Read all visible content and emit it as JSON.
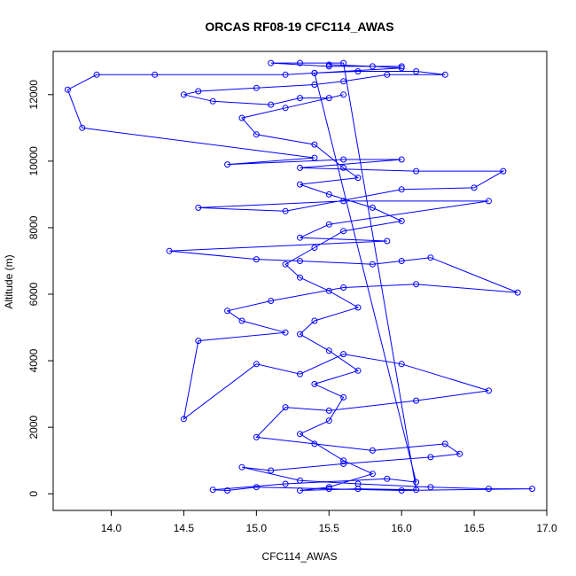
{
  "chart_data": {
    "type": "line",
    "title": "ORCAS RF08-19 CFC114_AWAS",
    "xlabel": "CFC114_AWAS",
    "ylabel": "Altitude (m)",
    "xlim": [
      13.6,
      17.0
    ],
    "ylim": [
      -500,
      13300
    ],
    "xticks": [
      14.0,
      14.5,
      15.0,
      15.5,
      16.0,
      16.5,
      17.0
    ],
    "xtick_labels": [
      "14.0",
      "14.5",
      "15.0",
      "15.5",
      "16.0",
      "16.5",
      "17.0"
    ],
    "yticks": [
      0,
      2000,
      4000,
      6000,
      8000,
      10000,
      12000
    ],
    "ytick_labels": [
      "0",
      "2000",
      "4000",
      "6000",
      "8000",
      "10000",
      "12000"
    ],
    "colors": {
      "series": "#0000ff",
      "axis": "#000000"
    },
    "grid": false,
    "legend": "none",
    "series": [
      {
        "marker": "open-circle",
        "points": [
          [
            15.5,
            12900
          ],
          [
            15.8,
            12850
          ],
          [
            16.0,
            12800
          ],
          [
            15.4,
            12650
          ],
          [
            15.2,
            12600
          ],
          [
            14.3,
            12600
          ],
          [
            13.9,
            12600
          ],
          [
            13.7,
            12150
          ],
          [
            13.8,
            11000
          ],
          [
            15.4,
            10100
          ],
          [
            14.8,
            9900
          ],
          [
            15.6,
            10050
          ],
          [
            16.0,
            10050
          ],
          [
            15.3,
            9800
          ],
          [
            16.1,
            9700
          ],
          [
            16.7,
            9700
          ],
          [
            16.5,
            9200
          ],
          [
            16.0,
            9150
          ],
          [
            15.2,
            8500
          ],
          [
            14.6,
            8600
          ],
          [
            15.6,
            8800
          ],
          [
            16.6,
            8800
          ],
          [
            15.5,
            8100
          ],
          [
            15.3,
            7700
          ],
          [
            15.9,
            7600
          ],
          [
            14.4,
            7300
          ],
          [
            15.0,
            7050
          ],
          [
            15.3,
            7000
          ],
          [
            15.8,
            6900
          ],
          [
            16.0,
            7000
          ],
          [
            16.2,
            7100
          ],
          [
            16.8,
            6050
          ],
          [
            16.1,
            6300
          ],
          [
            15.6,
            6200
          ],
          [
            15.1,
            5800
          ],
          [
            14.8,
            5500
          ],
          [
            14.9,
            5200
          ],
          [
            15.2,
            4850
          ],
          [
            14.6,
            4600
          ],
          [
            14.5,
            2250
          ],
          [
            15.0,
            3900
          ],
          [
            15.3,
            3600
          ],
          [
            15.6,
            4200
          ],
          [
            16.0,
            3900
          ],
          [
            16.6,
            3100
          ],
          [
            16.1,
            2800
          ],
          [
            15.5,
            2500
          ],
          [
            15.2,
            2600
          ],
          [
            15.0,
            1700
          ],
          [
            15.4,
            1500
          ],
          [
            15.8,
            1300
          ],
          [
            16.3,
            1500
          ],
          [
            16.4,
            1200
          ],
          [
            16.2,
            1100
          ],
          [
            15.6,
            900
          ],
          [
            15.1,
            700
          ],
          [
            14.9,
            800
          ],
          [
            15.3,
            400
          ],
          [
            15.7,
            300
          ],
          [
            16.2,
            200
          ],
          [
            16.6,
            150
          ],
          [
            16.9,
            150
          ],
          [
            16.0,
            100
          ],
          [
            15.5,
            150
          ],
          [
            15.0,
            200
          ],
          [
            14.8,
            100
          ],
          [
            14.7,
            120
          ],
          [
            15.2,
            300
          ],
          [
            15.9,
            450
          ],
          [
            16.1,
            350
          ],
          [
            15.4,
            12650
          ],
          [
            15.7,
            12700
          ],
          [
            16.1,
            12700
          ],
          [
            16.3,
            12600
          ],
          [
            15.9,
            12600
          ],
          [
            15.6,
            12400
          ],
          [
            15.4,
            12300
          ],
          [
            15.0,
            12200
          ],
          [
            14.6,
            12100
          ],
          [
            14.5,
            12000
          ],
          [
            14.7,
            11800
          ],
          [
            15.1,
            11700
          ],
          [
            15.3,
            11900
          ],
          [
            15.5,
            11900
          ],
          [
            15.6,
            12000
          ],
          [
            15.2,
            11600
          ],
          [
            14.9,
            11300
          ],
          [
            15.0,
            10800
          ],
          [
            15.4,
            10500
          ],
          [
            15.6,
            9800
          ],
          [
            15.7,
            9500
          ],
          [
            15.3,
            9300
          ],
          [
            15.5,
            9000
          ],
          [
            15.8,
            8600
          ],
          [
            16.0,
            8200
          ],
          [
            15.6,
            7900
          ],
          [
            15.4,
            7400
          ],
          [
            15.2,
            6900
          ],
          [
            15.3,
            6500
          ],
          [
            15.5,
            6100
          ],
          [
            15.7,
            5600
          ],
          [
            15.4,
            5200
          ],
          [
            15.3,
            4800
          ],
          [
            15.5,
            4300
          ],
          [
            15.7,
            3700
          ],
          [
            15.4,
            3300
          ],
          [
            15.6,
            2900
          ],
          [
            15.5,
            2200
          ],
          [
            15.3,
            1800
          ],
          [
            15.6,
            1000
          ],
          [
            15.8,
            600
          ],
          [
            15.5,
            200
          ],
          [
            15.3,
            100
          ],
          [
            15.7,
            150
          ],
          [
            16.1,
            120
          ],
          [
            15.6,
            12950
          ],
          [
            15.3,
            12950
          ],
          [
            15.1,
            12950
          ],
          [
            15.5,
            12850
          ],
          [
            16.0,
            12850
          ]
        ]
      }
    ]
  }
}
